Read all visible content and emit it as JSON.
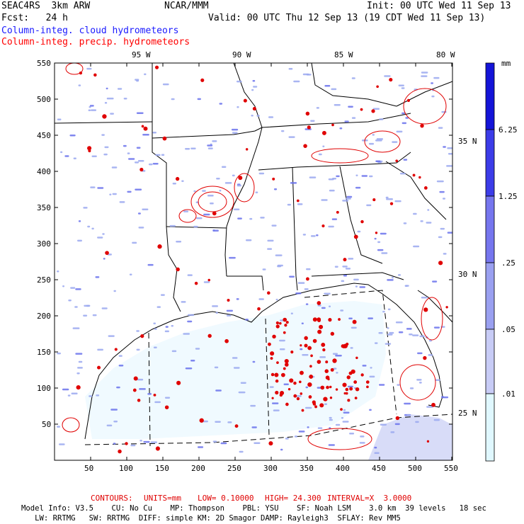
{
  "header": {
    "title": "SEAC4RS  3km ARW",
    "org": "NCAR/MMM",
    "init": "Init: 00 UTC Wed 11 Sep 13",
    "fcst": "Fcst:   24 h",
    "valid": "Valid: 00 UTC Thu 12 Sep 13 (19 CDT Wed 11 Sep 13)",
    "field_blue": "Column-integ. cloud hydrometeors",
    "field_red": "Column-integ. precip. hydrometeors"
  },
  "colors": {
    "blue_label": "#1a1aff",
    "red_label": "#ff0000",
    "contour": "#e00000",
    "borders": "#000000"
  },
  "longitude_labels": [
    "95 W",
    "90 W",
    "85 W",
    "80 W"
  ],
  "latitude_labels": [
    "35 N",
    "30 N",
    "25 N"
  ],
  "x_axis_ticks": [
    "50",
    "100",
    "150",
    "200",
    "250",
    "300",
    "350",
    "400",
    "450",
    "500",
    "550"
  ],
  "y_axis_ticks": [
    "550",
    "500",
    "450",
    "400",
    "350",
    "300",
    "250",
    "200",
    "150",
    "100",
    "50"
  ],
  "colorbar": {
    "unit": "mm",
    "labels": [
      "6.25",
      "1.25",
      ".25",
      ".05",
      ".01"
    ],
    "levels": [
      0.01,
      0.05,
      0.25,
      1.25,
      6.25
    ],
    "colors": [
      "#ffffff",
      "#e0f8ff",
      "#c8ccf6",
      "#9aa0f0",
      "#7676ee",
      "#3c3ce8",
      "#1414d8"
    ]
  },
  "contours": {
    "label": "CONTOURS:",
    "units": "UNITS=mm",
    "low": "LOW= 0.10000",
    "high": "HIGH= 24.300",
    "interval": "INTERVAL=X  3.0000"
  },
  "model_info": {
    "line1": "Model Info: V3.5    CU: No Cu    MP: Thompson    PBL: YSU    SF: Noah LSM    3.0 km  39 levels   18 sec",
    "line2": "   LW: RRTMG   SW: RRTMG  DIFF: simple KM: 2D Smagor DAMP: Rayleigh3  SFLAY: Rev MM5"
  }
}
